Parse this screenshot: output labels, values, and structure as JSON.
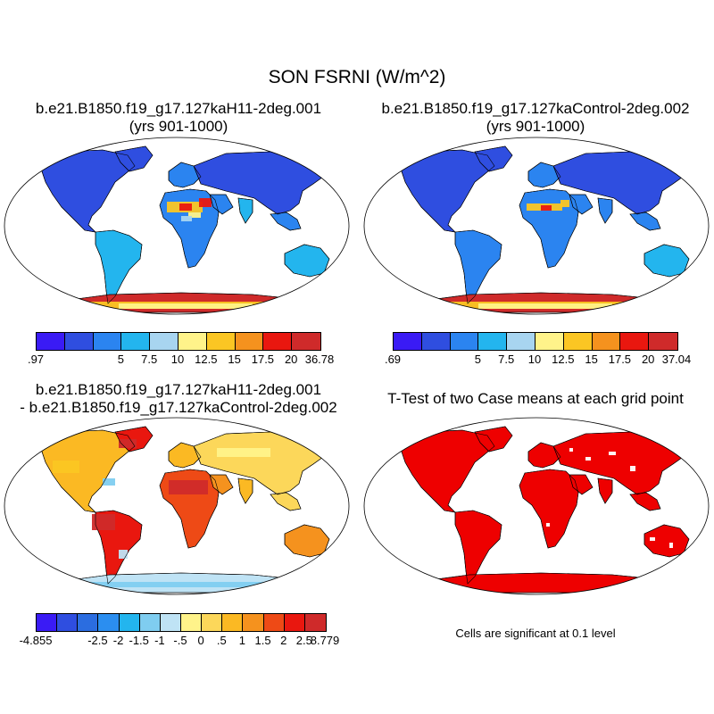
{
  "title": "SON FSRNI (W/m^2)",
  "panels": [
    {
      "title_line1": "b.e21.B1850.f19_g17.127kaH11-2deg.001",
      "title_line2": "(yrs 901-1000)",
      "colorbar": {
        "labels": [
          ".97",
          "5",
          "7.5",
          "10",
          "12.5",
          "15",
          "17.5",
          "20",
          "36.78"
        ]
      }
    },
    {
      "title_line1": "b.e21.B1850.f19_g17.127kaControl-2deg.002",
      "title_line2": "(yrs 901-1000)",
      "colorbar": {
        "labels": [
          ".69",
          "5",
          "7.5",
          "10",
          "12.5",
          "15",
          "17.5",
          "20",
          "37.04"
        ]
      }
    },
    {
      "title_line1": "b.e21.B1850.f19_g17.127kaH11-2deg.001",
      "title_line2": "- b.e21.B1850.f19_g17.127kaControl-2deg.002",
      "colorbar": {
        "labels": [
          "-4.855",
          "-2.5",
          "-2",
          "-1.5",
          "-1",
          "-.5",
          "0",
          ".5",
          "1",
          "1.5",
          "2",
          "2.5",
          "8.779"
        ]
      }
    },
    {
      "title_line1": "T-Test of two Case means at each grid point",
      "note": "Cells are significant at 0.1 level"
    }
  ],
  "colors": {
    "seq10": [
      "#3a1bf5",
      "#2f4ee0",
      "#2b84f0",
      "#23b5ee",
      "#a8d5f0",
      "#fff38a",
      "#fbc623",
      "#f5921e",
      "#e9170f",
      "#cf2a2a"
    ],
    "div14": [
      "#3a1bf5",
      "#2f4ee0",
      "#2b6de0",
      "#2b8ef0",
      "#23b5ee",
      "#7fcdf0",
      "#bfe3f5",
      "#fff38a",
      "#fcd75a",
      "#fbb923",
      "#f5921e",
      "#ee4a16",
      "#e9170f",
      "#cf2a2a"
    ],
    "ocean": "#ffffff",
    "signif": "#ee0000"
  }
}
